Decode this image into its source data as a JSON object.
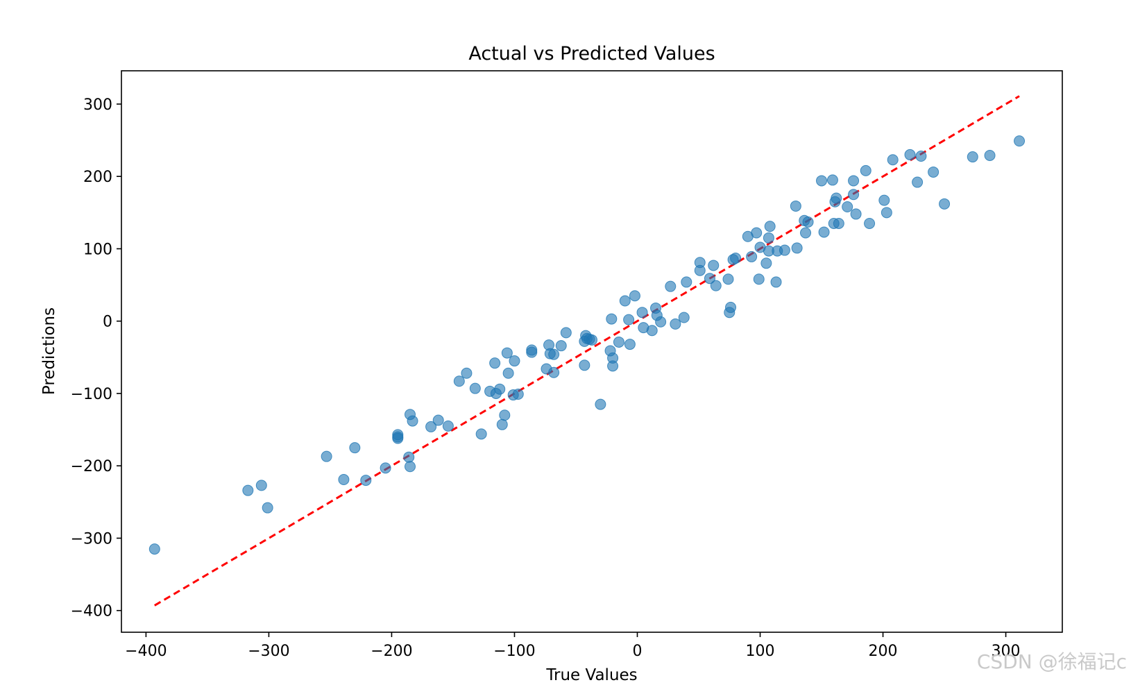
{
  "chart_data": {
    "type": "scatter",
    "title": "Actual vs Predicted Values",
    "xlabel": "True Values",
    "ylabel": "Predictions",
    "xlim": [
      -420,
      346
    ],
    "ylim": [
      -430,
      346
    ],
    "xticks": [
      -400,
      -300,
      -200,
      -100,
      0,
      100,
      200,
      300
    ],
    "yticks": [
      -400,
      -300,
      -200,
      -100,
      0,
      100,
      200,
      300
    ],
    "xtick_labels": [
      "−400",
      "−300",
      "−200",
      "−100",
      "0",
      "100",
      "200",
      "300"
    ],
    "ytick_labels": [
      "−400",
      "−300",
      "−200",
      "−100",
      "0",
      "100",
      "200",
      "300"
    ],
    "grid": false,
    "colors": {
      "points": "#1f77b4",
      "reference_line": "#ff0000"
    },
    "point_alpha": 0.6,
    "reference_line": {
      "style": "dashed",
      "from": [
        -393,
        -393
      ],
      "to": [
        311,
        311
      ]
    },
    "points": [
      [
        -393,
        -315
      ],
      [
        -317,
        -234
      ],
      [
        -306,
        -227
      ],
      [
        -301,
        -258
      ],
      [
        -253,
        -187
      ],
      [
        -239,
        -219
      ],
      [
        -230,
        -175
      ],
      [
        -221,
        -220
      ],
      [
        -205,
        -203
      ],
      [
        -195,
        -157
      ],
      [
        -195,
        -160
      ],
      [
        -195,
        -162
      ],
      [
        -185,
        -129
      ],
      [
        -186,
        -188
      ],
      [
        -185,
        -201
      ],
      [
        -183,
        -138
      ],
      [
        -168,
        -146
      ],
      [
        -162,
        -137
      ],
      [
        -154,
        -145
      ],
      [
        -145,
        -83
      ],
      [
        -139,
        -72
      ],
      [
        -132,
        -93
      ],
      [
        -127,
        -156
      ],
      [
        -120,
        -97
      ],
      [
        -116,
        -58
      ],
      [
        -115,
        -100
      ],
      [
        -112,
        -94
      ],
      [
        -110,
        -143
      ],
      [
        -108,
        -130
      ],
      [
        -106,
        -44
      ],
      [
        -105,
        -72
      ],
      [
        -100,
        -55
      ],
      [
        -101,
        -102
      ],
      [
        -97,
        -101
      ],
      [
        -86,
        -43
      ],
      [
        -86,
        -40
      ],
      [
        -74,
        -66
      ],
      [
        -72,
        -33
      ],
      [
        -71,
        -45
      ],
      [
        -68,
        -46
      ],
      [
        -68,
        -71
      ],
      [
        -62,
        -34
      ],
      [
        -58,
        -16
      ],
      [
        -43,
        -61
      ],
      [
        -43,
        -28
      ],
      [
        -42,
        -20
      ],
      [
        -41,
        -24
      ],
      [
        -39,
        -25
      ],
      [
        -37,
        -26
      ],
      [
        -30,
        -115
      ],
      [
        -22,
        -41
      ],
      [
        -21,
        3
      ],
      [
        -20,
        -51
      ],
      [
        -20,
        -62
      ],
      [
        -15,
        -29
      ],
      [
        -10,
        28
      ],
      [
        -7,
        2
      ],
      [
        -6,
        -32
      ],
      [
        -2,
        35
      ],
      [
        4,
        12
      ],
      [
        5,
        -9
      ],
      [
        12,
        -13
      ],
      [
        15,
        18
      ],
      [
        16,
        8
      ],
      [
        19,
        -1
      ],
      [
        27,
        48
      ],
      [
        31,
        -4
      ],
      [
        38,
        5
      ],
      [
        40,
        54
      ],
      [
        51,
        81
      ],
      [
        51,
        70
      ],
      [
        59,
        59
      ],
      [
        62,
        77
      ],
      [
        64,
        49
      ],
      [
        74,
        58
      ],
      [
        75,
        12
      ],
      [
        76,
        19
      ],
      [
        78,
        85
      ],
      [
        80,
        87
      ],
      [
        90,
        117
      ],
      [
        93,
        89
      ],
      [
        97,
        122
      ],
      [
        99,
        58
      ],
      [
        100,
        102
      ],
      [
        105,
        80
      ],
      [
        107,
        97
      ],
      [
        107,
        115
      ],
      [
        108,
        131
      ],
      [
        113,
        54
      ],
      [
        114,
        97
      ],
      [
        120,
        98
      ],
      [
        129,
        159
      ],
      [
        130,
        101
      ],
      [
        136,
        139
      ],
      [
        137,
        122
      ],
      [
        139,
        137
      ],
      [
        150,
        194
      ],
      [
        152,
        123
      ],
      [
        159,
        195
      ],
      [
        160,
        135
      ],
      [
        161,
        165
      ],
      [
        162,
        170
      ],
      [
        164,
        135
      ],
      [
        171,
        158
      ],
      [
        176,
        194
      ],
      [
        176,
        175
      ],
      [
        178,
        148
      ],
      [
        186,
        208
      ],
      [
        189,
        135
      ],
      [
        201,
        167
      ],
      [
        203,
        150
      ],
      [
        208,
        223
      ],
      [
        222,
        230
      ],
      [
        228,
        192
      ],
      [
        231,
        228
      ],
      [
        241,
        206
      ],
      [
        250,
        162
      ],
      [
        273,
        227
      ],
      [
        287,
        229
      ],
      [
        311,
        249
      ]
    ]
  },
  "watermark": "CSDN @徐福记c"
}
